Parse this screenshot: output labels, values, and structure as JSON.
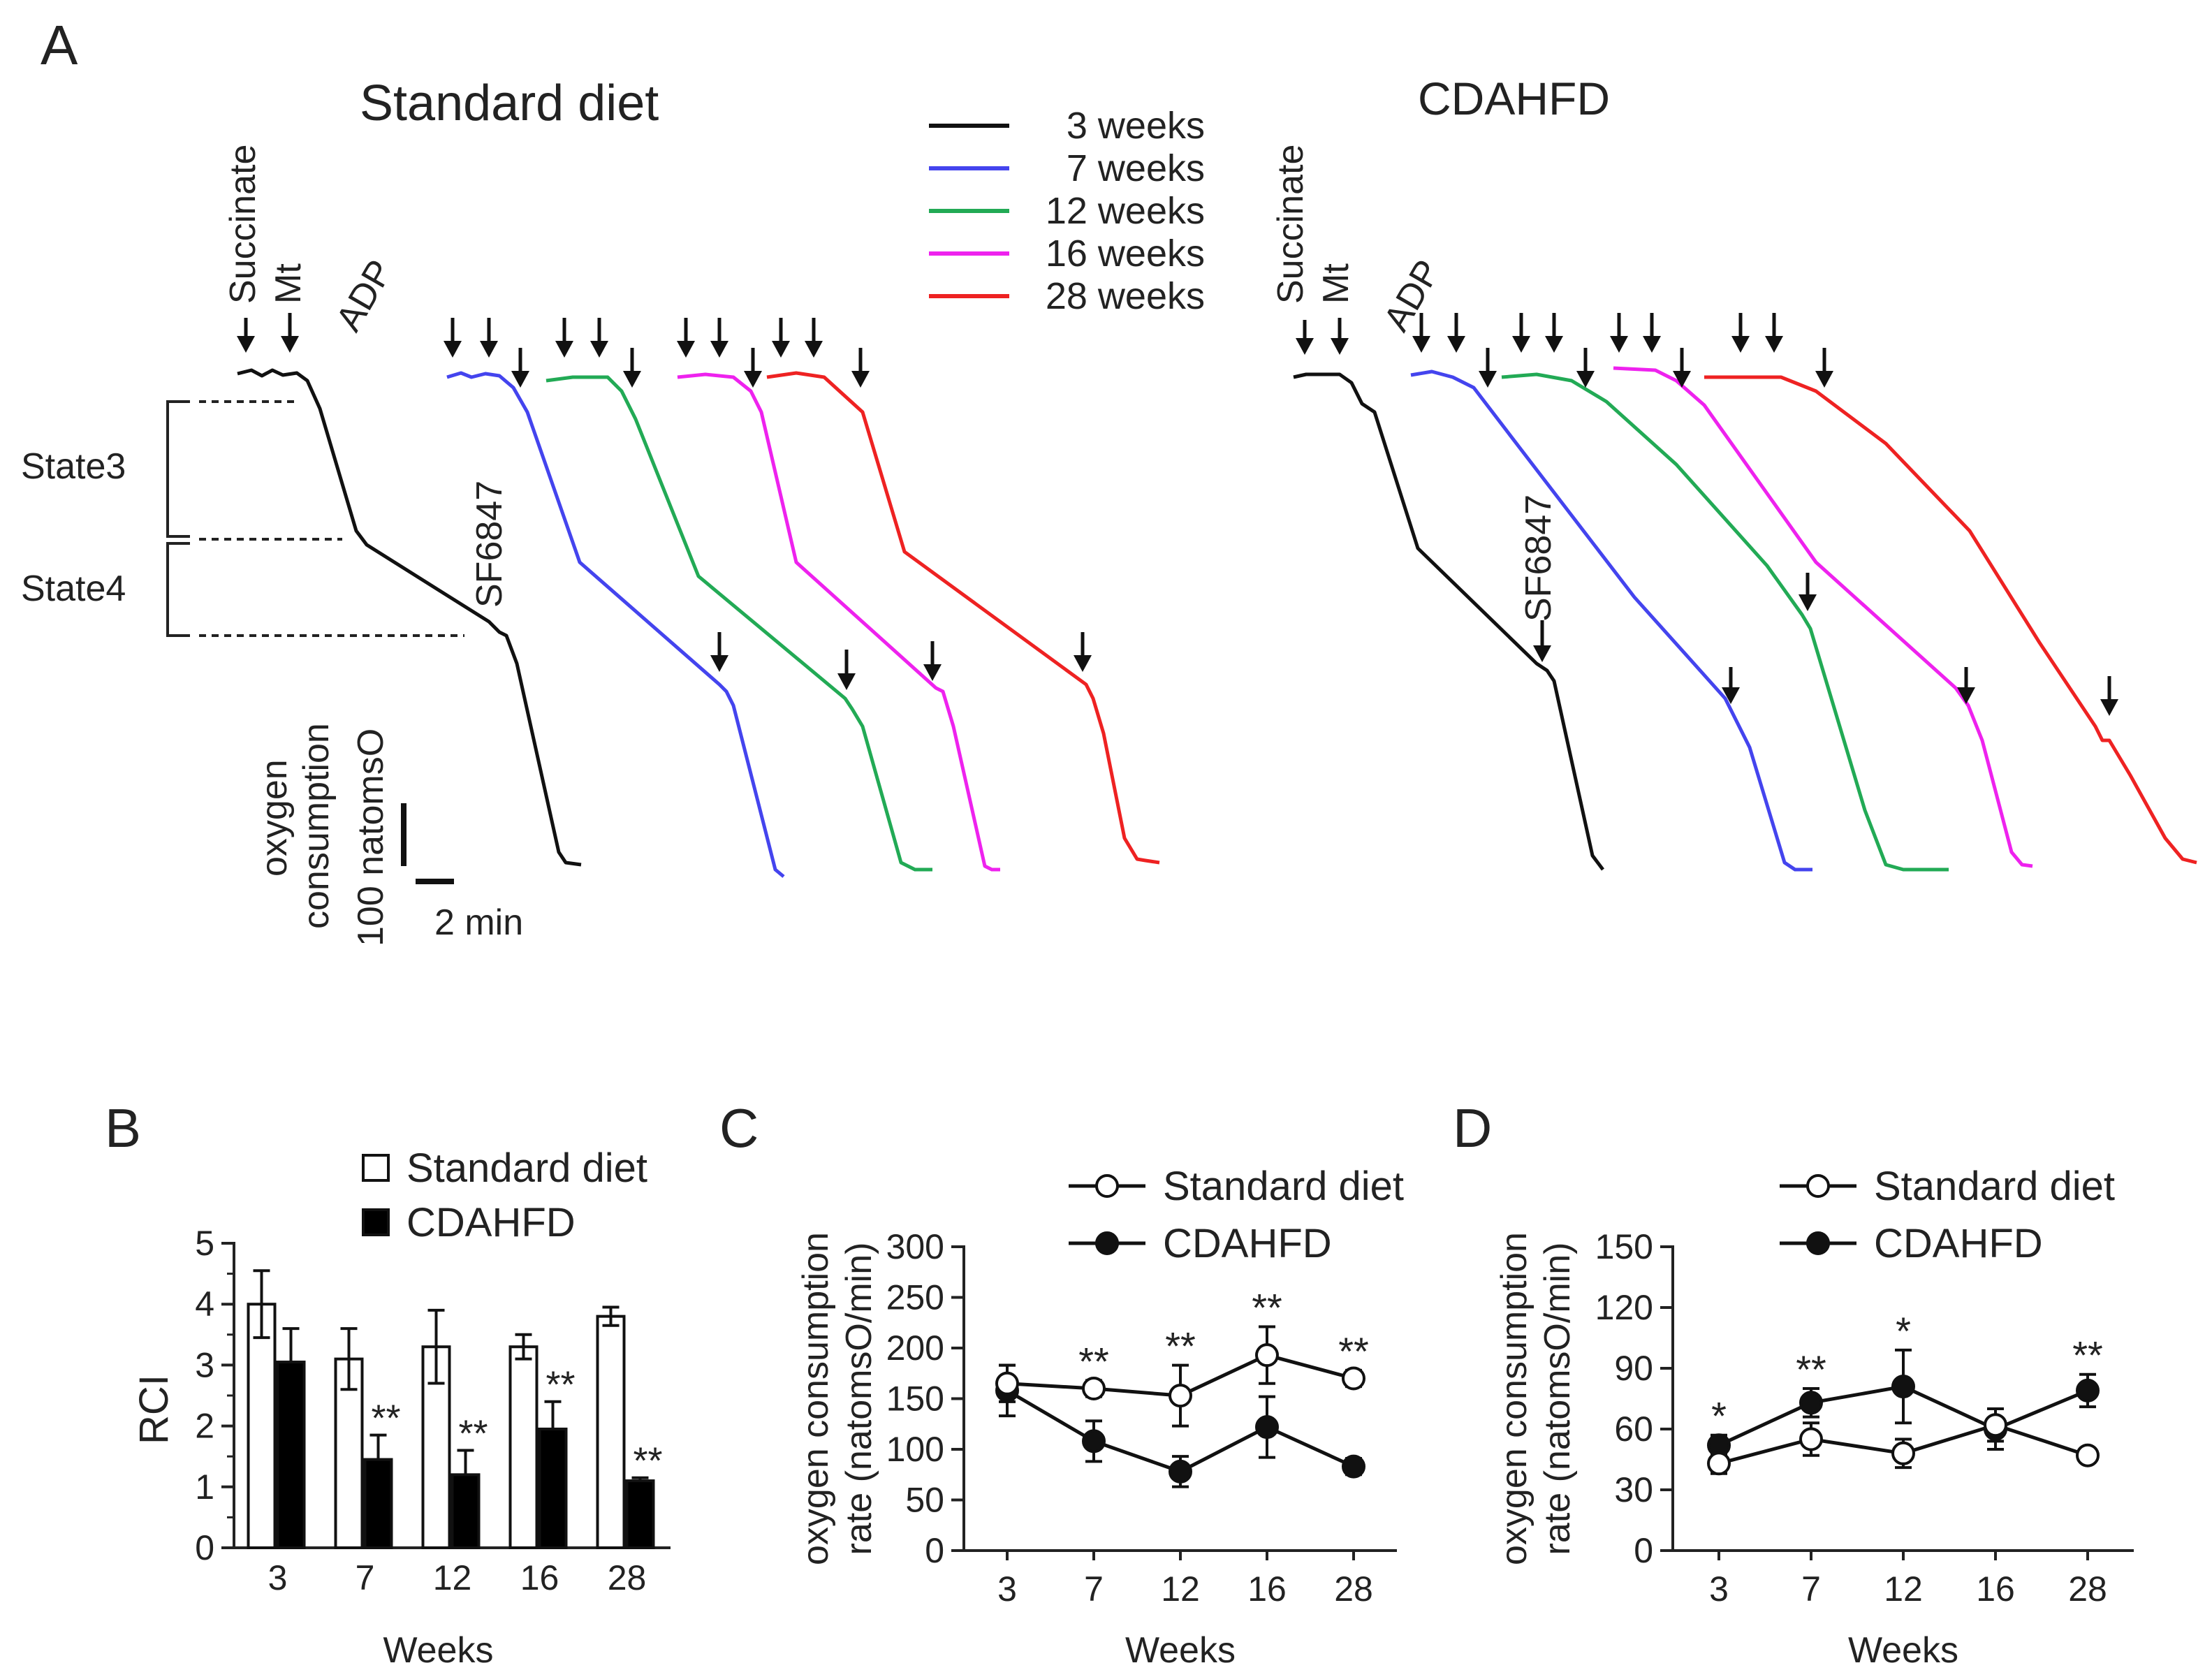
{
  "panels": {
    "A": {
      "letter": "A",
      "title_left": "Standard diet",
      "title_right": "CDAHFD"
    },
    "B": {
      "letter": "B"
    },
    "C": {
      "letter": "C"
    },
    "D": {
      "letter": "D"
    }
  },
  "traces": {
    "legend": [
      {
        "label": "3 weeks",
        "color": "#111111"
      },
      {
        "label": "7 weeks",
        "color": "#4444ee"
      },
      {
        "label": "12 weeks",
        "color": "#22aa55"
      },
      {
        "label": "16 weeks",
        "color": "#ee22ee"
      },
      {
        "label": "28 weeks",
        "color": "#ee2222"
      }
    ],
    "additions": {
      "succinate": "Succinate",
      "mt": "Mt",
      "adp": "ADP",
      "uncoupler": "SF6847"
    },
    "states": {
      "state3": "State3",
      "state4": "State4"
    },
    "scale_bar": {
      "y_label": "100 natomsO",
      "y_caption_1": "oxygen",
      "y_caption_2": "consumption",
      "x_label": "2 min"
    }
  },
  "chart_data": [
    {
      "panel": "B",
      "type": "bar",
      "title": "",
      "xlabel": "Weeks",
      "ylabel": "RCI",
      "ylim": [
        0,
        5
      ],
      "yticks": [
        0,
        1,
        2,
        3,
        4,
        5
      ],
      "categories": [
        "3",
        "7",
        "12",
        "16",
        "28"
      ],
      "series": [
        {
          "name": "Standard diet",
          "fill": "#ffffff",
          "values": [
            4.0,
            3.1,
            3.3,
            3.3,
            3.8
          ],
          "errors": [
            0.55,
            0.5,
            0.6,
            0.2,
            0.15
          ]
        },
        {
          "name": "CDAHFD",
          "fill": "#000000",
          "values": [
            3.05,
            1.45,
            1.2,
            1.95,
            1.1
          ],
          "errors": [
            0.55,
            0.4,
            0.4,
            0.45,
            0.05
          ]
        }
      ],
      "significance": [
        "",
        "**",
        "**",
        "**",
        "**"
      ]
    },
    {
      "panel": "C",
      "type": "line",
      "title": "",
      "xlabel": "Weeks",
      "ylabel_1": "oxygen consumption",
      "ylabel_2": "rate (natomsO/min)",
      "ylim": [
        0,
        300
      ],
      "yticks": [
        0,
        50,
        100,
        150,
        200,
        250,
        300
      ],
      "categories": [
        "3",
        "7",
        "12",
        "16",
        "28"
      ],
      "series": [
        {
          "name": "Standard diet",
          "marker": "open",
          "values": [
            165,
            160,
            153,
            193,
            170
          ],
          "errors": [
            18,
            8,
            30,
            28,
            8
          ]
        },
        {
          "name": "CDAHFD",
          "marker": "filled",
          "values": [
            158,
            108,
            78,
            122,
            83
          ],
          "errors": [
            25,
            20,
            15,
            30,
            8
          ]
        }
      ],
      "significance": [
        "",
        "**",
        "**",
        "**",
        "**"
      ]
    },
    {
      "panel": "D",
      "type": "line",
      "title": "",
      "xlabel": "Weeks",
      "ylabel_1": "oxygen consumption",
      "ylabel_2": "rate (natomsO/min)",
      "ylim": [
        0,
        150
      ],
      "yticks": [
        0,
        30,
        60,
        90,
        120,
        150
      ],
      "categories": [
        "3",
        "7",
        "12",
        "16",
        "28"
      ],
      "series": [
        {
          "name": "Standard diet",
          "marker": "open",
          "values": [
            43,
            55,
            48,
            62,
            47
          ],
          "errors": [
            5,
            8,
            7,
            8,
            3
          ]
        },
        {
          "name": "CDAHFD",
          "marker": "filled",
          "values": [
            52,
            73,
            81,
            60,
            79
          ],
          "errors": [
            5,
            7,
            18,
            10,
            8
          ]
        }
      ],
      "significance": [
        "*",
        "**",
        "*",
        "",
        "**"
      ]
    }
  ]
}
